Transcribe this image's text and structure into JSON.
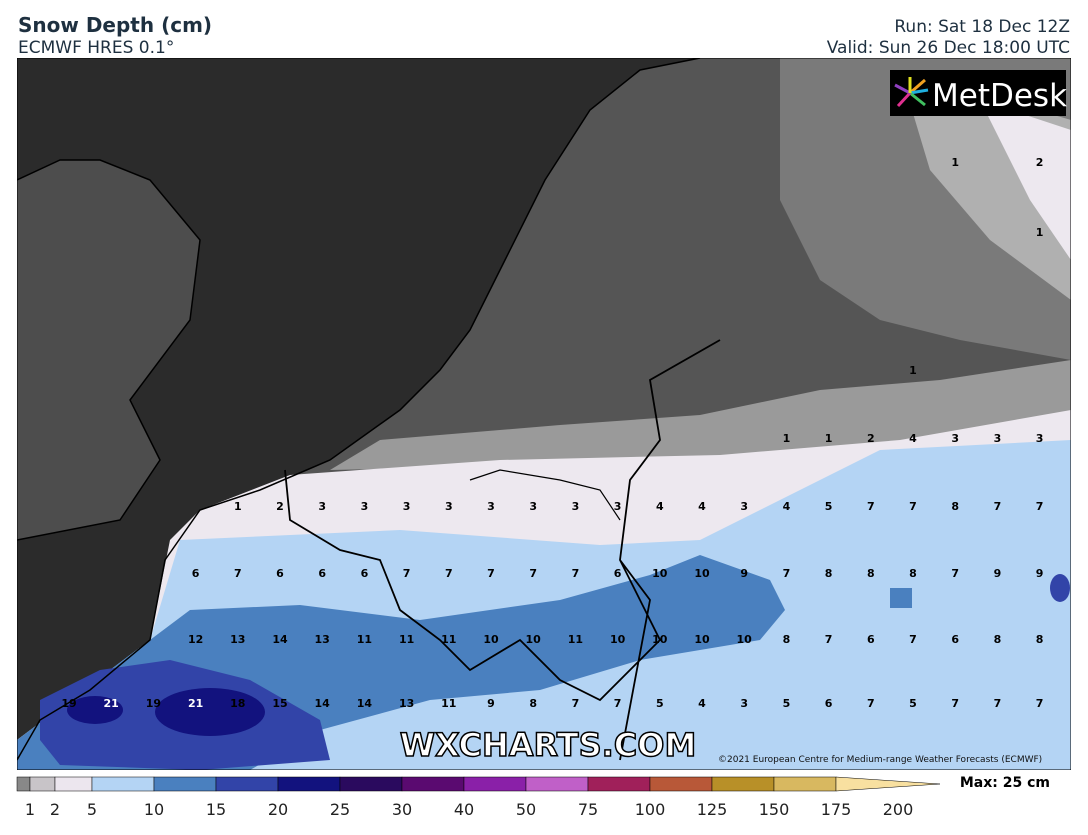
{
  "header": {
    "title": "Snow Depth (cm)",
    "subtitle": "ECMWF HRES 0.1°",
    "run": "Run: Sat 18 Dec 12Z",
    "valid": "Valid: Sun 26 Dec 18:00 UTC"
  },
  "logo": "MetDesk",
  "watermark": "WXCHARTS.COM",
  "copyright": "©2021 European Centre for Medium-range Weather Forecasts (ECMWF)",
  "grid_values": [
    [
      null,
      null,
      null,
      null,
      null,
      null,
      null,
      null,
      null,
      null,
      null,
      null,
      null,
      null,
      null,
      null,
      null,
      null,
      null,
      null,
      null,
      1,
      null,
      2
    ],
    [
      null,
      null,
      null,
      null,
      null,
      null,
      null,
      null,
      null,
      null,
      null,
      null,
      null,
      null,
      null,
      null,
      null,
      null,
      null,
      null,
      null,
      null,
      null,
      1
    ],
    [
      null,
      null,
      null,
      null,
      null,
      null,
      null,
      null,
      null,
      null,
      null,
      null,
      null,
      null,
      null,
      null,
      null,
      null,
      null,
      null,
      1,
      null,
      null,
      null
    ],
    [
      null,
      null,
      null,
      null,
      null,
      null,
      null,
      null,
      null,
      null,
      null,
      null,
      null,
      null,
      null,
      null,
      null,
      1,
      1,
      2,
      4,
      3,
      3,
      3
    ],
    [
      null,
      null,
      null,
      null,
      1,
      2,
      3,
      3,
      3,
      3,
      3,
      3,
      3,
      3,
      4,
      4,
      3,
      4,
      5,
      7,
      7,
      8,
      7,
      7
    ],
    [
      null,
      null,
      null,
      6,
      7,
      6,
      6,
      6,
      7,
      7,
      7,
      7,
      7,
      6,
      10,
      10,
      9,
      7,
      8,
      8,
      8,
      7,
      9,
      9
    ],
    [
      null,
      null,
      null,
      12,
      13,
      14,
      13,
      11,
      11,
      11,
      10,
      10,
      11,
      10,
      10,
      10,
      10,
      8,
      7,
      6,
      7,
      6,
      8,
      8
    ],
    [
      19,
      21,
      19,
      21,
      18,
      15,
      14,
      14,
      13,
      11,
      9,
      8,
      7,
      7,
      5,
      4,
      3,
      5,
      6,
      7,
      5,
      7,
      7,
      7
    ]
  ],
  "colorbar": {
    "labels": [
      1,
      2,
      5,
      10,
      15,
      20,
      25,
      30,
      40,
      50,
      75,
      100,
      125,
      150,
      175,
      200
    ],
    "colors": [
      "#888888",
      "#c8c4c8",
      "#ece6ee",
      "#b4d4f4",
      "#4a80bf",
      "#3244a8",
      "#12127e",
      "#2a0a5e",
      "#5a0a70",
      "#8a20a8",
      "#c060c8",
      "#a0205a",
      "#b85838",
      "#b89028",
      "#d8b860",
      "#f8e0a0"
    ],
    "max": "Max: 25 cm"
  }
}
